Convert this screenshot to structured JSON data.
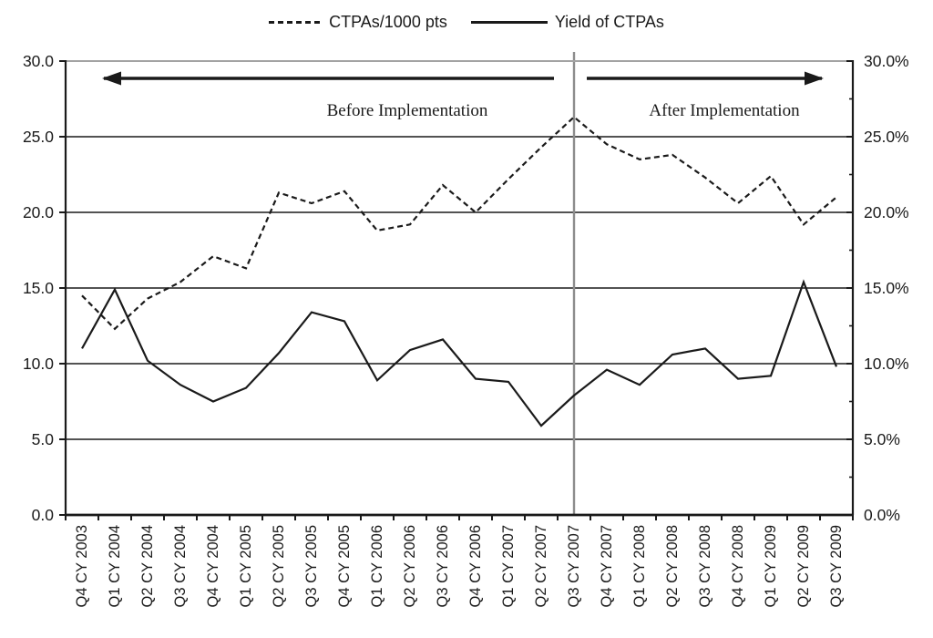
{
  "legend": {
    "items": [
      {
        "label": "CTPAs/1000 pts",
        "line_style": "dashed"
      },
      {
        "label": "Yield of CTPAs",
        "line_style": "solid"
      }
    ]
  },
  "chart_data": {
    "type": "line",
    "title": "",
    "legend_position": "top",
    "categories": [
      "Q4 CY 2003",
      "Q1 CY 2004",
      "Q2 CY 2004",
      "Q3 CY 2004",
      "Q4 CY 2004",
      "Q1 CY 2005",
      "Q2 CY 2005",
      "Q3 CY 2005",
      "Q4 CY 2005",
      "Q1 CY 2006",
      "Q2 CY 2006",
      "Q3 CY 2006",
      "Q4 CY 2006",
      "Q1 CY 2007",
      "Q2 CY 2007",
      "Q3 CY 2007",
      "Q4 CY 2007",
      "Q1 CY 2008",
      "Q2 CY 2008",
      "Q3 CY 2008",
      "Q4 CY 2008",
      "Q1 CY 2009",
      "Q2 CY 2009",
      "Q3 CY 2009"
    ],
    "series": [
      {
        "name": "CTPAs/1000 pts",
        "line_style": "dashed",
        "axis": "left",
        "values": [
          14.5,
          12.3,
          14.3,
          15.4,
          17.1,
          16.3,
          21.3,
          20.6,
          21.4,
          18.8,
          19.2,
          21.8,
          20.0,
          22.2,
          24.3,
          26.3,
          24.5,
          23.5,
          23.8,
          22.3,
          20.6,
          22.4,
          19.2,
          21.0
        ]
      },
      {
        "name": "Yield of CTPAs",
        "line_style": "solid",
        "axis": "right",
        "values": [
          11.0,
          14.9,
          10.2,
          8.6,
          7.5,
          8.4,
          10.7,
          13.4,
          12.8,
          8.9,
          10.9,
          11.6,
          9.0,
          8.8,
          5.9,
          7.9,
          9.6,
          8.6,
          10.6,
          11.0,
          9.0,
          9.2,
          15.4,
          9.8
        ]
      }
    ],
    "left_axis": {
      "min": 0,
      "max": 30,
      "major_step": 5,
      "tick_labels": [
        "0.0",
        "5.0",
        "10.0",
        "15.0",
        "20.0",
        "25.0",
        "30.0"
      ]
    },
    "right_axis": {
      "min": 0,
      "max": 30,
      "major_step": 5,
      "minor_step": 2.5,
      "tick_labels": [
        "0.0%",
        "5.0%",
        "10.0%",
        "15.0%",
        "20.0%",
        "25.0%",
        "30.0%"
      ]
    },
    "gridlines": {
      "horizontal_values": [
        5,
        10,
        15,
        20,
        25
      ]
    },
    "annotations": {
      "before_label": "Before Implementation",
      "after_label": "After Implementation",
      "divider_category": "Q3 CY 2007",
      "divider_index": 15
    },
    "colors": {
      "line": "#1a1a1a",
      "divider": "#8c8c8c",
      "top_border": "#a3a3a3"
    }
  }
}
